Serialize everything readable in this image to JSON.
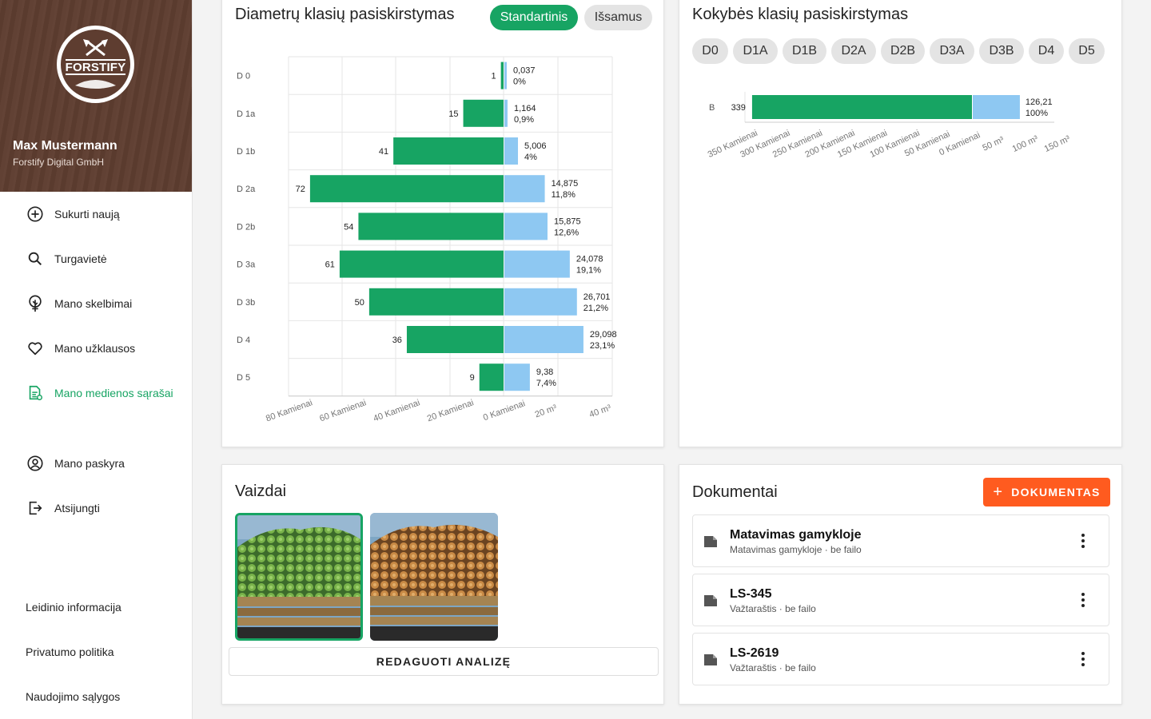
{
  "brand": {
    "logo_text": "FORSTIFY"
  },
  "user": {
    "name": "Max Mustermann",
    "company": "Forstify Digital GmbH"
  },
  "nav": [
    {
      "label": "Sukurti naują",
      "icon": "plus-circle-icon",
      "active": false
    },
    {
      "label": "Turgavietė",
      "icon": "search-icon",
      "active": false
    },
    {
      "label": "Mano skelbimai",
      "icon": "tree-icon",
      "active": false
    },
    {
      "label": "Mano užklausos",
      "icon": "heart-icon",
      "active": false
    },
    {
      "label": "Mano medienos sąrašai",
      "icon": "document-list-icon",
      "active": true
    },
    {
      "label": "Mano paskyra",
      "icon": "account-circle-icon",
      "active": false
    },
    {
      "label": "Atsijungti",
      "icon": "logout-icon",
      "active": false
    }
  ],
  "footer_links": [
    "Leidinio informacija",
    "Privatumo politika",
    "Naudojimo sąlygos"
  ],
  "diameter_card": {
    "title": "Diametrų klasių pasiskirstymas",
    "toggle": {
      "standard": "Standartinis",
      "detailed": "Išsamus",
      "selected": "standard"
    }
  },
  "quality_card": {
    "title": "Kokybės klasių pasiskirstymas",
    "filters": [
      "D0",
      "D1A",
      "D1B",
      "D2A",
      "D2B",
      "D3A",
      "D3B",
      "D4",
      "D5"
    ]
  },
  "chart_data": [
    {
      "type": "bar",
      "orientation": "horizontal",
      "categories": [
        "D 0",
        "D 1a",
        "D 1b",
        "D 2a",
        "D 2b",
        "D 3a",
        "D 3b",
        "D 4",
        "D 5"
      ],
      "series": [
        {
          "values": [
            1,
            15,
            41,
            72,
            54,
            61,
            50,
            36,
            9
          ],
          "labels": [
            "1",
            "15",
            "41",
            "72",
            "54",
            "61",
            "50",
            "36",
            "9"
          ],
          "side": "left",
          "color": "#17a463"
        },
        {
          "values": [
            0.037,
            1.164,
            5.006,
            14.875,
            15.875,
            24.078,
            26.701,
            29.098,
            9.38
          ],
          "labels": [
            "0,037",
            "1,164",
            "5,006",
            "14,875",
            "15,875",
            "24,078",
            "26,701",
            "29,098",
            "9,38"
          ],
          "percent_labels": [
            "0%",
            "0,9%",
            "4%",
            "11,8%",
            "12,6%",
            "19,1%",
            "21,2%",
            "23,1%",
            "7,4%"
          ],
          "side": "right",
          "color": "#8ec8f2"
        }
      ],
      "left_ticks": [
        "80 Kamienai",
        "60 Kamienai",
        "40 Kamienai",
        "20 Kamienai",
        "0 Kamienai"
      ],
      "right_ticks": [
        "20 m³",
        "40 m³"
      ],
      "left_max": 80,
      "right_max": 40,
      "grid": true
    },
    {
      "type": "bar",
      "orientation": "horizontal",
      "categories": [
        "B"
      ],
      "series": [
        {
          "values": [
            339
          ],
          "labels": [
            "339"
          ],
          "side": "left",
          "color": "#17a463"
        },
        {
          "values": [
            126.21
          ],
          "labels": [
            "126,21"
          ],
          "percent_labels": [
            "100%"
          ],
          "side": "right",
          "color": "#8ec8f2"
        }
      ],
      "left_ticks": [
        "350 Kamienai",
        "300 Kamienai",
        "250 Kamienai",
        "200 Kamienai",
        "150 Kamienai",
        "100 Kamienai",
        "50 Kamienai",
        "0 Kamienai"
      ],
      "right_ticks": [
        "50 m³",
        "100 m³",
        "150 m³"
      ],
      "left_max": 350,
      "right_max": 150,
      "grid": true
    }
  ],
  "views_card": {
    "title": "Vaizdai",
    "edit_button": "REDAGUOTI ANALIZĘ"
  },
  "documents_card": {
    "title": "Dokumentai",
    "add_button": "DOKUMENTAS",
    "items": [
      {
        "title": "Matavimas gamykloje",
        "subtitle": "Matavimas gamykloje · be failo"
      },
      {
        "title": "LS-345",
        "subtitle": "Važtaraštis · be failo"
      },
      {
        "title": "LS-2619",
        "subtitle": "Važtaraštis · be failo"
      }
    ]
  },
  "colors": {
    "accent": "#17a463",
    "secondary_bar": "#8ec8f2",
    "cta": "#ff5b1f",
    "sidebar_header": "#5e3d30"
  }
}
